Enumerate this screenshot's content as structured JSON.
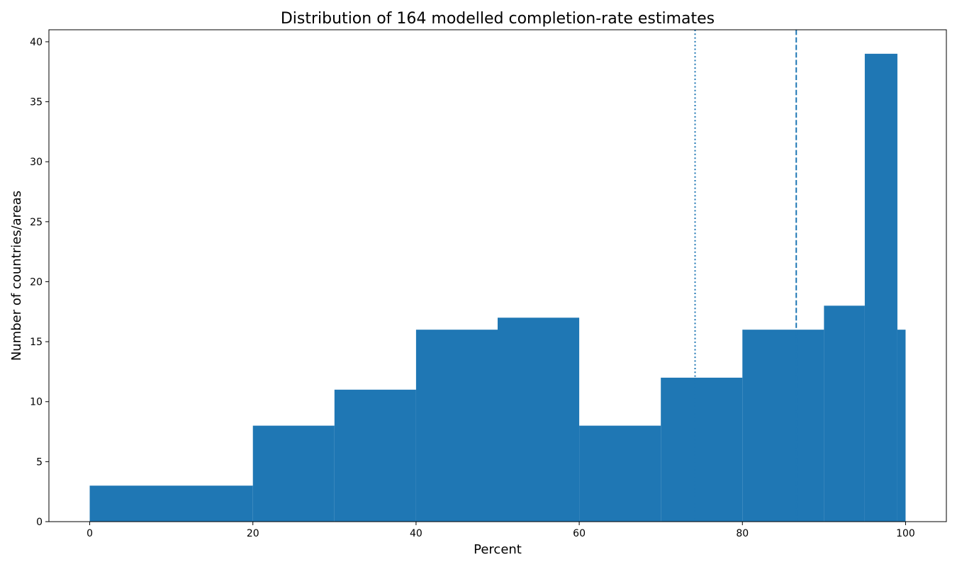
{
  "chart_data": {
    "type": "bar",
    "title": "Distribution of 164 modelled completion-rate estimates",
    "xlabel": "Percent",
    "ylabel": "Number of countries/areas",
    "bar_color": "#1f77b4",
    "line_color": "#1f77b4",
    "xlim": [
      -5,
      105
    ],
    "ylim": [
      0,
      41
    ],
    "xticks": [
      0,
      20,
      40,
      60,
      80,
      100
    ],
    "yticks": [
      0,
      5,
      10,
      15,
      20,
      25,
      30,
      35,
      40
    ],
    "bins": [
      {
        "x0": 0,
        "x1": 20,
        "count": 3
      },
      {
        "x0": 20,
        "x1": 30,
        "count": 8
      },
      {
        "x0": 30,
        "x1": 40,
        "count": 11
      },
      {
        "x0": 40,
        "x1": 50,
        "count": 16
      },
      {
        "x0": 50,
        "x1": 60,
        "count": 17
      },
      {
        "x0": 60,
        "x1": 70,
        "count": 8
      },
      {
        "x0": 70,
        "x1": 80,
        "count": 12
      },
      {
        "x0": 80,
        "x1": 90,
        "count": 16
      },
      {
        "x0": 90,
        "x1": 95,
        "count": 18
      },
      {
        "x0": 95,
        "x1": 99,
        "count": 39
      },
      {
        "x0": 99,
        "x1": 100,
        "count": 16
      }
    ],
    "reference_lines": [
      {
        "x": 74.2,
        "style": "dotted"
      },
      {
        "x": 86.6,
        "style": "dashed"
      }
    ],
    "grid": false,
    "legend": "none"
  }
}
